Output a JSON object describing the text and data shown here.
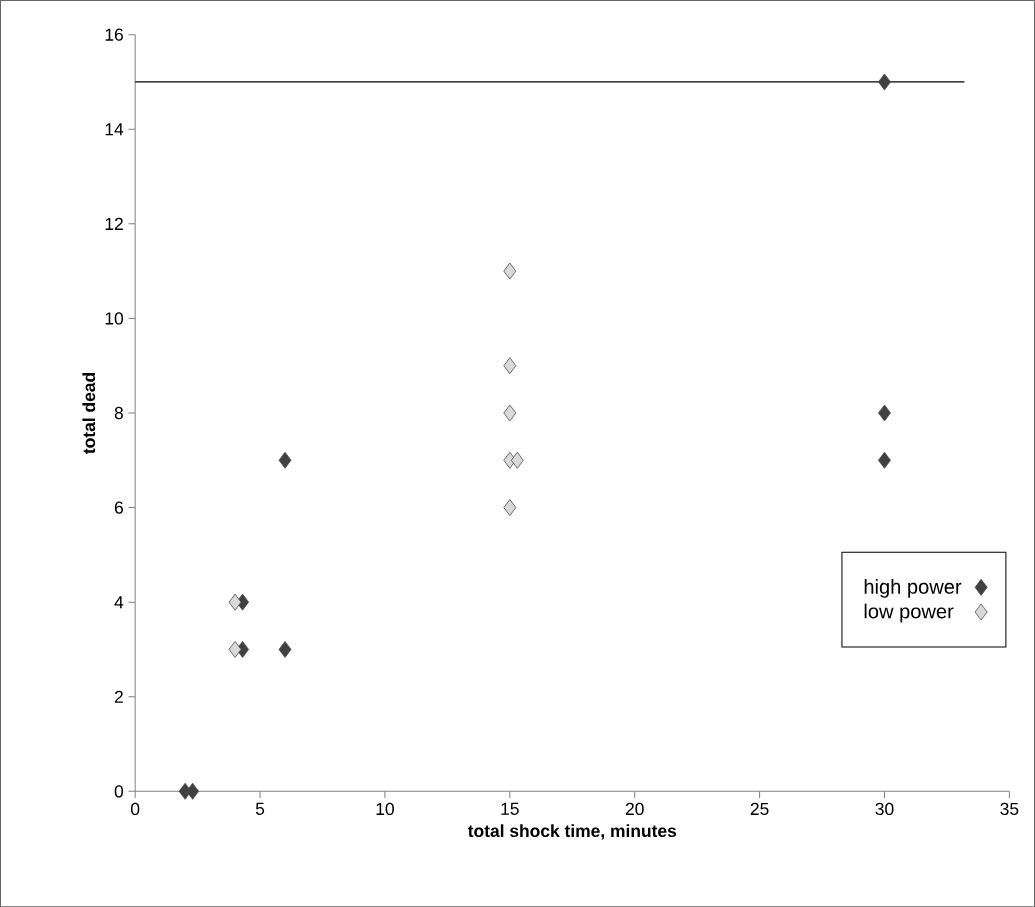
{
  "chart_data": {
    "type": "scatter",
    "xlabel": "total shock time, minutes",
    "ylabel": "total dead",
    "xlim": [
      0,
      35
    ],
    "xticks": [
      0,
      5,
      10,
      15,
      20,
      25,
      30,
      35
    ],
    "ylim": [
      0,
      16
    ],
    "yticks": [
      0,
      2,
      4,
      6,
      8,
      10,
      12,
      14,
      16
    ],
    "marker": "diamond",
    "legend": "bottom right",
    "series": [
      {
        "name": "high power",
        "color": "#404040",
        "x": [
          2,
          2.3,
          4.3,
          4.3,
          6,
          6,
          30,
          30,
          30
        ],
        "values": [
          0,
          0,
          4,
          3,
          7,
          3,
          15,
          8,
          7
        ]
      },
      {
        "name": "low power",
        "color": "#d9d9d9",
        "x": [
          4,
          4,
          15,
          15,
          15,
          15,
          15.3,
          15
        ],
        "values": [
          4,
          3,
          11,
          9,
          8,
          7,
          7,
          6
        ]
      },
      {
        "type": "line",
        "marker": "none",
        "color": "#000000",
        "x": [
          0,
          33.2
        ],
        "values": [
          15,
          15
        ]
      }
    ]
  }
}
